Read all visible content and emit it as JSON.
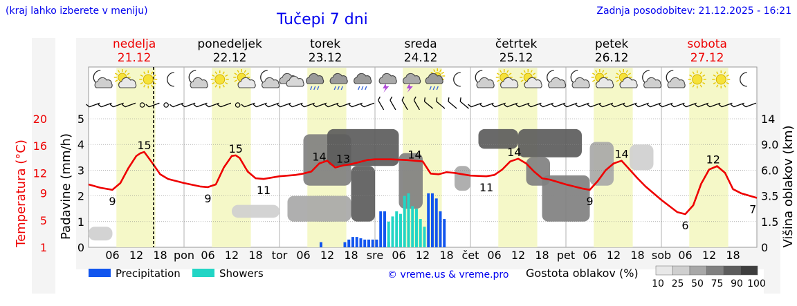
{
  "header": {
    "location_hint": "(kraj lahko izberete v meniju)",
    "title": "Tučepi 7 dni",
    "updated": "Zadnja posodobitev: 21.12.2025 - 16:21"
  },
  "days": [
    {
      "name": "nedelja",
      "date": "21.12",
      "weekend": true
    },
    {
      "name": "ponedeljek",
      "date": "22.12",
      "weekend": false
    },
    {
      "name": "torek",
      "date": "23.12",
      "weekend": false
    },
    {
      "name": "sreda",
      "date": "24.12",
      "weekend": false
    },
    {
      "name": "četrtek",
      "date": "25.12",
      "weekend": false
    },
    {
      "name": "petek",
      "date": "26.12",
      "weekend": false
    },
    {
      "name": "sobota",
      "date": "27.12",
      "weekend": true
    }
  ],
  "weather_icons": [
    "moon-cloud",
    "sun-cloud",
    "sun",
    "moon",
    "moon-cloud",
    "sun",
    "sun-cloud",
    "moon-cloud",
    "cloud",
    "rain-cloud",
    "rain-cloud",
    "rain-cloud",
    "thunder-cloud",
    "thunder-cloud",
    "sun-rain",
    "moon",
    "moon-cloud",
    "sun-cloud",
    "sun-cloud",
    "moon-cloud",
    "moon-cloud",
    "sun-cloud",
    "sun-cloud",
    "moon-cloud",
    "moon-cloud",
    "sun",
    "sun",
    "moon"
  ],
  "colors": {
    "temperature": "#ee0000",
    "precipitation": "#1155ee",
    "showers": "#22d5c5",
    "daylight": "#f5f8c8",
    "title": "#0000ee",
    "weekend": "#ee0000"
  },
  "legend": {
    "precipitation": "Precipitation",
    "showers": "Showers",
    "credit": "© vreme.us & vreme.pro",
    "cloud_density_label": "Gostota oblakov (%)",
    "cloud_density_levels": [
      "10",
      "25",
      "50",
      "75",
      "90",
      "100"
    ]
  },
  "chart_data": {
    "type": "line",
    "title": "Tučepi 7 dni",
    "x_unit": "hours since 21.12 00:00",
    "x_range": [
      0,
      168
    ],
    "x_ticks": [
      {
        "h": 6,
        "label": "06"
      },
      {
        "h": 12,
        "label": "12"
      },
      {
        "h": 18,
        "label": "18"
      },
      {
        "h": 24,
        "label": "pon"
      },
      {
        "h": 30,
        "label": "06"
      },
      {
        "h": 36,
        "label": "12"
      },
      {
        "h": 42,
        "label": "18"
      },
      {
        "h": 48,
        "label": "tor"
      },
      {
        "h": 54,
        "label": "06"
      },
      {
        "h": 60,
        "label": "12"
      },
      {
        "h": 66,
        "label": "18"
      },
      {
        "h": 72,
        "label": "sre"
      },
      {
        "h": 78,
        "label": "06"
      },
      {
        "h": 84,
        "label": "12"
      },
      {
        "h": 90,
        "label": "18"
      },
      {
        "h": 96,
        "label": "čet"
      },
      {
        "h": 102,
        "label": "06"
      },
      {
        "h": 108,
        "label": "12"
      },
      {
        "h": 114,
        "label": "18"
      },
      {
        "h": 120,
        "label": "pet"
      },
      {
        "h": 126,
        "label": "06"
      },
      {
        "h": 132,
        "label": "12"
      },
      {
        "h": 138,
        "label": "18"
      },
      {
        "h": 144,
        "label": "sob"
      },
      {
        "h": 150,
        "label": "06"
      },
      {
        "h": 156,
        "label": "12"
      },
      {
        "h": 162,
        "label": "18"
      }
    ],
    "now_hour": 16.35,
    "daylight_hours": [
      7,
      16.8
    ],
    "left_axis_precip": {
      "label": "Padavine (mm/h)",
      "range": [
        0,
        5
      ],
      "ticks": [
        "0",
        "1",
        "2",
        "3",
        "4",
        "5"
      ]
    },
    "left_axis_temp": {
      "label": "Temperatura (°C)",
      "range": [
        1,
        20
      ],
      "ticks": [
        "1",
        "5",
        "9",
        "12",
        "16",
        "20"
      ]
    },
    "right_axis": {
      "label": "Višina oblakov (km)",
      "ticks": [
        "0",
        "1.5",
        "3.5",
        "6.0",
        "9.0",
        "14"
      ]
    },
    "temperature": {
      "name": "Temperatura (°C)",
      "x": [
        0,
        3,
        6,
        8,
        10,
        12,
        13,
        14,
        16,
        18,
        20,
        24,
        28,
        30,
        32,
        34,
        36,
        37,
        38,
        40,
        42,
        44,
        48,
        52,
        54,
        56,
        58,
        60,
        62,
        64,
        66,
        68,
        70,
        72,
        76,
        80,
        84,
        86,
        88,
        90,
        92,
        94,
        96,
        100,
        102,
        104,
        106,
        108,
        110,
        112,
        114,
        116,
        120,
        124,
        126,
        128,
        130,
        132,
        134,
        136,
        138,
        140,
        144,
        148,
        150,
        152,
        154,
        156,
        158,
        160,
        162,
        164,
        168
      ],
      "y": [
        10.3,
        9.8,
        9.5,
        10.5,
        12.7,
        14.5,
        14.9,
        15.1,
        13.5,
        11.8,
        11.1,
        10.5,
        10.0,
        9.9,
        10.3,
        12.8,
        14.5,
        14.6,
        14.2,
        12.2,
        11.2,
        11.1,
        11.5,
        11.7,
        11.9,
        12.2,
        13.4,
        13.8,
        12.8,
        13.1,
        13.3,
        13.6,
        13.9,
        14.0,
        14.0,
        13.9,
        13.7,
        11.9,
        11.8,
        12.1,
        12.0,
        11.8,
        11.6,
        11.5,
        11.7,
        12.5,
        13.7,
        14.1,
        13.4,
        12.2,
        11.2,
        11.0,
        10.3,
        9.7,
        9.5,
        10.8,
        12.4,
        13.4,
        13.8,
        12.5,
        11.2,
        10.0,
        8.0,
        6.2,
        5.9,
        7.2,
        10.4,
        12.5,
        13.0,
        12.0,
        9.6,
        9.0,
        8.3
      ]
    },
    "temp_annotations": [
      {
        "h": 6,
        "value": "9"
      },
      {
        "h": 14,
        "value": "15"
      },
      {
        "h": 30,
        "value": "9"
      },
      {
        "h": 37,
        "value": "15"
      },
      {
        "h": 44,
        "value": "11"
      },
      {
        "h": 58,
        "value": "14"
      },
      {
        "h": 64,
        "value": "13"
      },
      {
        "h": 82,
        "value": "14"
      },
      {
        "h": 100,
        "value": "11"
      },
      {
        "h": 107,
        "value": "14"
      },
      {
        "h": 126,
        "value": "9"
      },
      {
        "h": 134,
        "value": "14"
      },
      {
        "h": 150,
        "value": "6"
      },
      {
        "h": 157,
        "value": "12"
      },
      {
        "h": 167,
        "value": "7"
      }
    ],
    "precipitation": {
      "name": "Precipitation",
      "unit": "mm/h",
      "x": [
        58,
        64,
        65,
        66,
        67,
        68,
        69,
        70,
        71,
        72,
        73,
        74,
        75,
        85,
        86,
        87,
        88,
        89
      ],
      "y": [
        0.2,
        0.2,
        0.3,
        0.4,
        0.4,
        0.35,
        0.3,
        0.3,
        0.3,
        0.3,
        1.4,
        1.4,
        0.2,
        2.1,
        2.1,
        1.9,
        1.4,
        1.1
      ]
    },
    "showers": {
      "name": "Showers",
      "unit": "mm/h",
      "x": [
        75,
        76,
        77,
        78,
        79,
        80,
        81,
        82,
        83,
        84
      ],
      "y": [
        1.0,
        1.2,
        1.4,
        1.3,
        2.0,
        2.1,
        1.6,
        1.5,
        1.1,
        0.8
      ]
    },
    "cloud_density": {
      "name": "Gostota oblakov (%)",
      "unit": "% cover by hour and height (km)",
      "regions": [
        {
          "h0": 0,
          "h1": 6,
          "z0": 0.4,
          "z1": 1.2,
          "density": 25
        },
        {
          "h0": 36,
          "h1": 48,
          "z0": 1.8,
          "z1": 2.8,
          "density": 25
        },
        {
          "h0": 50,
          "h1": 66,
          "z0": 1.5,
          "z1": 3.5,
          "density": 50
        },
        {
          "h0": 54,
          "h1": 66,
          "z0": 4.5,
          "z1": 11.0,
          "density": 75
        },
        {
          "h0": 60,
          "h1": 78,
          "z0": 6.5,
          "z1": 12.0,
          "density": 90
        },
        {
          "h0": 66,
          "h1": 72,
          "z0": 1.5,
          "z1": 6.5,
          "density": 90
        },
        {
          "h0": 78,
          "h1": 84,
          "z0": 2.5,
          "z1": 8.0,
          "density": 75
        },
        {
          "h0": 92,
          "h1": 96,
          "z0": 4.0,
          "z1": 6.5,
          "density": 50
        },
        {
          "h0": 98,
          "h1": 108,
          "z0": 8.5,
          "z1": 12.0,
          "density": 90
        },
        {
          "h0": 108,
          "h1": 124,
          "z0": 7.5,
          "z1": 12.0,
          "density": 90
        },
        {
          "h0": 110,
          "h1": 116,
          "z0": 4.5,
          "z1": 7.5,
          "density": 75
        },
        {
          "h0": 114,
          "h1": 126,
          "z0": 1.5,
          "z1": 5.5,
          "density": 75
        },
        {
          "h0": 126,
          "h1": 132,
          "z0": 4.5,
          "z1": 9.5,
          "density": 50
        },
        {
          "h0": 136,
          "h1": 142,
          "z0": 6.0,
          "z1": 9.0,
          "density": 25
        }
      ]
    },
    "wind_barbs": "row of wind barbs at 3-hour steps; circles mark calm periods",
    "grid": true
  }
}
